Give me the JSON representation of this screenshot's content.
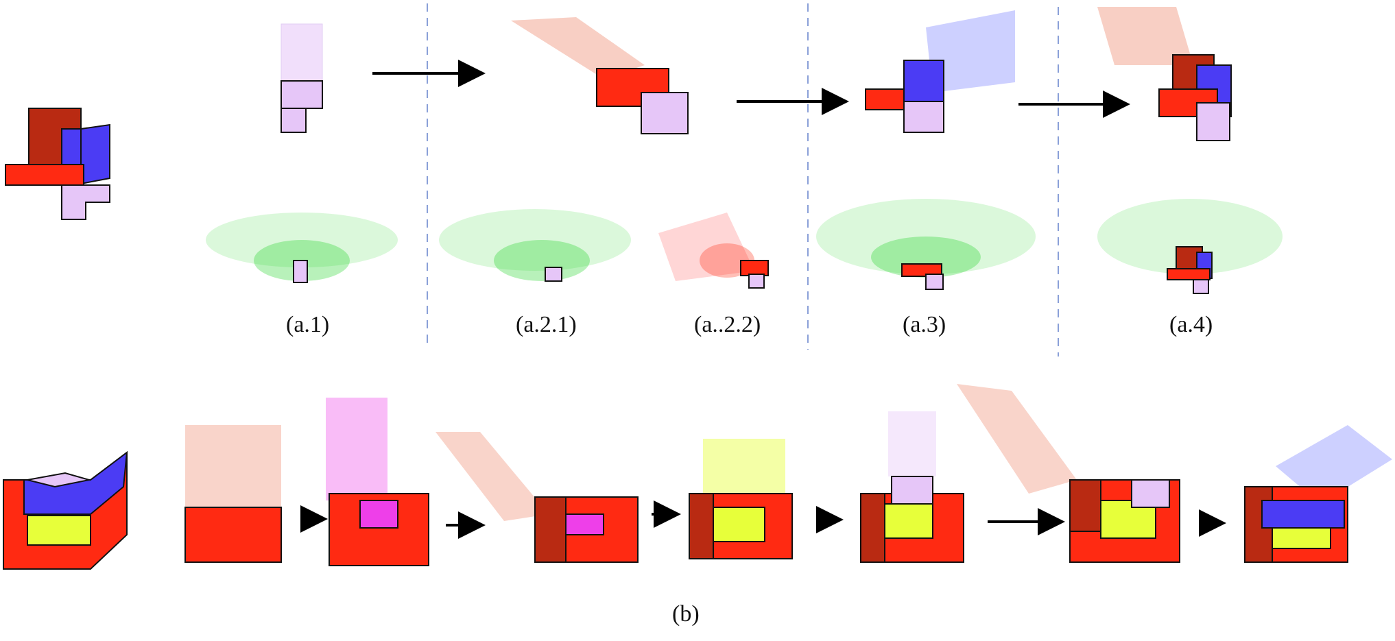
{
  "labels": {
    "a1": "(a.1)",
    "a21": "(a.2.1)",
    "a22": "(a..2.2)",
    "a3": "(a.3)",
    "a4": "(a.4)",
    "b": "(b)"
  },
  "colors": {
    "red": "#ff2a12",
    "dark_red": "#b92a12",
    "blue": "#4b3cf4",
    "lilac": "#e6c6f8",
    "magenta": "#ee3fe9",
    "yellow_green": "#e7ff3a",
    "ghost_green": "#35d83a",
    "ghost_salmon": "#f2a08a",
    "separator": "#8aa0d8"
  }
}
